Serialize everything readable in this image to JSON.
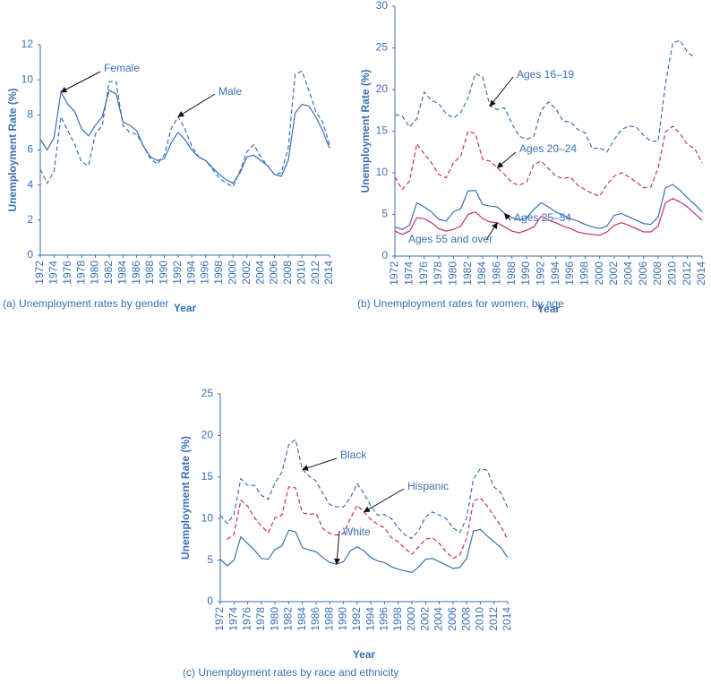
{
  "chart_data": [
    {
      "type": "line",
      "caption": "(a) Unemployment rates by gender",
      "x_label": "Year",
      "y_label": "Unemployment Rate (%)",
      "x": [
        1972,
        1973,
        1974,
        1975,
        1976,
        1977,
        1978,
        1979,
        1980,
        1981,
        1982,
        1983,
        1984,
        1985,
        1986,
        1987,
        1988,
        1989,
        1990,
        1991,
        1992,
        1993,
        1994,
        1995,
        1996,
        1997,
        1998,
        1999,
        2000,
        2001,
        2002,
        2003,
        2004,
        2005,
        2006,
        2007,
        2008,
        2009,
        2010,
        2011,
        2012,
        2013,
        2014
      ],
      "xlim": [
        1972,
        2014
      ],
      "xticks": [
        1972,
        1974,
        1976,
        1978,
        1980,
        1982,
        1984,
        1986,
        1988,
        1990,
        1992,
        1994,
        1996,
        1998,
        2000,
        2002,
        2004,
        2006,
        2008,
        2010,
        2012,
        2014
      ],
      "ylim": [
        0,
        12
      ],
      "yticks": [
        0,
        2,
        4,
        6,
        8,
        10,
        12
      ],
      "series": [
        {
          "name": "Female",
          "color": "#3a6fb5",
          "style": "solid",
          "values": [
            6.6,
            6.0,
            6.7,
            9.3,
            8.6,
            8.2,
            7.2,
            6.8,
            7.4,
            7.9,
            9.4,
            9.2,
            7.6,
            7.4,
            7.1,
            6.2,
            5.6,
            5.4,
            5.5,
            6.4,
            7.0,
            6.6,
            6.0,
            5.6,
            5.4,
            5.0,
            4.6,
            4.3,
            4.1,
            4.7,
            5.6,
            5.7,
            5.4,
            5.1,
            4.6,
            4.5,
            5.4,
            8.1,
            8.6,
            8.5,
            7.9,
            7.1,
            6.1
          ]
        },
        {
          "name": "Male",
          "color": "#3a6fb5",
          "style": "dashed",
          "values": [
            4.9,
            4.1,
            4.8,
            7.9,
            7.1,
            6.3,
            5.3,
            5.1,
            6.9,
            7.4,
            9.9,
            9.9,
            7.4,
            7.0,
            6.9,
            6.2,
            5.5,
            5.2,
            5.7,
            7.2,
            7.9,
            7.2,
            6.2,
            5.6,
            5.4,
            4.9,
            4.4,
            4.1,
            3.9,
            4.8,
            5.9,
            6.3,
            5.6,
            5.1,
            4.6,
            4.7,
            6.1,
            10.3,
            10.5,
            9.4,
            8.2,
            7.6,
            6.3
          ]
        }
      ]
    },
    {
      "type": "line",
      "caption": "(b) Unemployment rates for women, by age",
      "x_label": "Year",
      "y_label": "Unemployment Rate (%)",
      "x": [
        1972,
        1973,
        1974,
        1975,
        1976,
        1977,
        1978,
        1979,
        1980,
        1981,
        1982,
        1983,
        1984,
        1985,
        1986,
        1987,
        1988,
        1989,
        1990,
        1991,
        1992,
        1993,
        1994,
        1995,
        1996,
        1997,
        1998,
        1999,
        2000,
        2001,
        2002,
        2003,
        2004,
        2005,
        2006,
        2007,
        2008,
        2009,
        2010,
        2011,
        2012,
        2013,
        2014
      ],
      "xlim": [
        1972,
        2014
      ],
      "xticks": [
        1972,
        1974,
        1976,
        1978,
        1980,
        1982,
        1984,
        1986,
        1988,
        1990,
        1992,
        1994,
        1996,
        1998,
        2000,
        2002,
        2004,
        2006,
        2008,
        2010,
        2012,
        2014
      ],
      "ylim": [
        0,
        30
      ],
      "yticks": [
        0,
        5,
        10,
        15,
        20,
        25,
        30
      ],
      "series": [
        {
          "name": "Ages 16–19",
          "color": "#3a6fb5",
          "style": "dashed",
          "values": [
            17.0,
            16.8,
            15.5,
            16.5,
            19.7,
            18.7,
            18.3,
            17.1,
            16.6,
            17.2,
            19.0,
            21.9,
            21.5,
            18.0,
            17.6,
            17.8,
            15.9,
            14.4,
            14.0,
            14.4,
            17.5,
            18.5,
            17.7,
            16.2,
            16.1,
            15.2,
            14.8,
            12.9,
            13.0,
            12.5,
            14.0,
            15.2,
            15.6,
            15.5,
            14.5,
            13.8,
            13.8,
            20.7,
            25.6,
            25.9,
            24.5,
            23.8,
            null
          ]
        },
        {
          "name": "Ages 20–24",
          "color": "#c2306e",
          "style": "dashed",
          "values": [
            9.5,
            8.0,
            9.0,
            13.5,
            12.3,
            11.2,
            9.8,
            9.4,
            11.2,
            12.0,
            15.0,
            14.7,
            11.6,
            11.4,
            10.6,
            9.8,
            8.8,
            8.5,
            8.9,
            11.0,
            11.4,
            10.5,
            9.6,
            9.3,
            9.5,
            8.5,
            8.0,
            7.5,
            7.2,
            8.6,
            9.6,
            10.0,
            9.5,
            8.9,
            8.2,
            8.3,
            10.6,
            14.9,
            15.6,
            14.7,
            13.4,
            12.9,
            11.2
          ]
        },
        {
          "name": "Ages 25–54",
          "color": "#3a6fb5",
          "style": "solid",
          "values": [
            3.5,
            3.2,
            3.7,
            6.4,
            5.9,
            5.3,
            4.4,
            4.2,
            5.3,
            5.7,
            7.8,
            7.9,
            6.2,
            6.0,
            5.9,
            5.1,
            4.6,
            4.3,
            4.6,
            5.6,
            6.4,
            5.9,
            5.3,
            4.9,
            4.5,
            4.2,
            3.8,
            3.5,
            3.3,
            3.6,
            4.9,
            5.1,
            4.7,
            4.3,
            3.9,
            3.8,
            4.7,
            8.2,
            8.6,
            7.9,
            7.0,
            6.2,
            5.3
          ]
        },
        {
          "name": "Ages 55 and over",
          "color": "#c2306e",
          "style": "solid",
          "values": [
            3.0,
            2.6,
            3.0,
            4.6,
            4.5,
            4.0,
            3.3,
            3.0,
            3.2,
            3.6,
            5.0,
            5.3,
            4.5,
            4.1,
            4.0,
            3.5,
            3.0,
            2.8,
            3.1,
            3.5,
            4.8,
            4.3,
            4.0,
            3.6,
            3.3,
            2.9,
            2.7,
            2.6,
            2.5,
            2.9,
            3.7,
            4.0,
            3.7,
            3.3,
            2.9,
            2.9,
            3.6,
            6.4,
            6.9,
            6.5,
            5.9,
            5.1,
            4.3
          ]
        }
      ]
    },
    {
      "type": "line",
      "caption": "(c) Unemployment rates by race and ethnicity",
      "x_label": "Year",
      "y_label": "Unemployment Rate (%)",
      "x": [
        1972,
        1973,
        1974,
        1975,
        1976,
        1977,
        1978,
        1979,
        1980,
        1981,
        1982,
        1983,
        1984,
        1985,
        1986,
        1987,
        1988,
        1989,
        1990,
        1991,
        1992,
        1993,
        1994,
        1995,
        1996,
        1997,
        1998,
        1999,
        2000,
        2001,
        2002,
        2003,
        2004,
        2005,
        2006,
        2007,
        2008,
        2009,
        2010,
        2011,
        2012,
        2013,
        2014
      ],
      "xlim": [
        1972,
        2014
      ],
      "xticks": [
        1972,
        1974,
        1976,
        1978,
        1980,
        1982,
        1984,
        1986,
        1988,
        1990,
        1992,
        1994,
        1996,
        1998,
        2000,
        2002,
        2004,
        2006,
        2008,
        2010,
        2012,
        2014
      ],
      "ylim": [
        0,
        25
      ],
      "yticks": [
        0,
        5,
        10,
        15,
        20,
        25
      ],
      "series": [
        {
          "name": "Black",
          "color": "#3a6fb5",
          "style": "dashed",
          "values": [
            10.4,
            9.4,
            10.5,
            14.8,
            14.0,
            14.0,
            12.8,
            12.3,
            14.3,
            15.6,
            18.9,
            19.5,
            15.9,
            15.1,
            14.5,
            13.0,
            11.7,
            11.4,
            11.4,
            12.5,
            14.2,
            13.0,
            11.5,
            10.4,
            10.5,
            10.0,
            8.9,
            8.0,
            7.6,
            8.6,
            10.2,
            10.8,
            10.4,
            10.0,
            8.9,
            8.3,
            10.1,
            14.8,
            16.0,
            15.8,
            13.8,
            13.1,
            11.3
          ]
        },
        {
          "name": "Hispanic",
          "color": "#c2306e",
          "style": "dashed",
          "values": [
            null,
            7.5,
            8.1,
            12.2,
            11.5,
            10.1,
            9.1,
            8.3,
            10.1,
            10.4,
            13.8,
            13.7,
            10.7,
            10.5,
            10.6,
            8.8,
            8.2,
            8.0,
            8.2,
            10.0,
            11.6,
            10.8,
            9.9,
            9.3,
            8.9,
            7.7,
            7.2,
            6.4,
            5.7,
            6.6,
            7.5,
            7.7,
            7.0,
            6.0,
            5.2,
            5.6,
            7.6,
            12.1,
            12.5,
            11.5,
            10.3,
            9.1,
            7.4
          ]
        },
        {
          "name": "White",
          "color": "#3a6fb5",
          "style": "solid",
          "values": [
            5.1,
            4.3,
            5.0,
            7.8,
            7.0,
            6.2,
            5.2,
            5.1,
            6.3,
            6.7,
            8.6,
            8.4,
            6.5,
            6.2,
            6.0,
            5.3,
            4.7,
            4.5,
            4.8,
            6.1,
            6.6,
            6.1,
            5.3,
            4.9,
            4.7,
            4.2,
            3.9,
            3.7,
            3.5,
            4.2,
            5.1,
            5.2,
            4.8,
            4.4,
            4.0,
            4.1,
            5.2,
            8.5,
            8.7,
            7.9,
            7.2,
            6.5,
            5.3
          ]
        }
      ]
    }
  ]
}
